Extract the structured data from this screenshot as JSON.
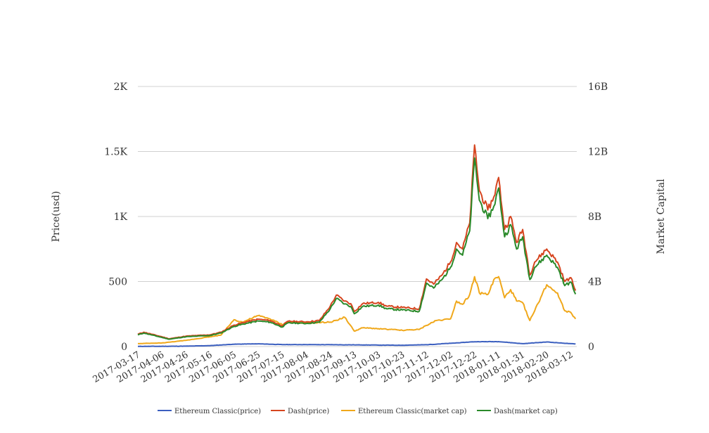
{
  "chart_data": {
    "type": "line",
    "title": "",
    "ylabel": "Price(usd)",
    "y2label": "Market Capital",
    "ylim": [
      0,
      2000
    ],
    "y2lim": [
      0,
      16000000000
    ],
    "y_ticks": [
      "0",
      "500",
      "1K",
      "1.5K",
      "2K"
    ],
    "y2_ticks": [
      "0",
      "4B",
      "8B",
      "12B",
      "16B"
    ],
    "x_range": [
      "2017-03-17",
      "2018-03-17"
    ],
    "x_ticks": [
      "2017-03-17",
      "2017-04-06",
      "2017-04-26",
      "2017-05-16",
      "2017-06-05",
      "2017-06-25",
      "2017-07-15",
      "2017-08-04",
      "2017-08-24",
      "2017-09-13",
      "2017-10-03",
      "2017-10-23",
      "2017-11-12",
      "2017-12-02",
      "2017-12-22",
      "2018-01-11",
      "2018-01-31",
      "2018-02-20",
      "2018-03-12"
    ],
    "grid": true,
    "legend_position": "bottom",
    "series": [
      {
        "name": "Ethereum Classic(price)",
        "axis": "left",
        "color": "#3b5fbf",
        "points": [
          [
            "2017-03-17",
            1.5
          ],
          [
            "2017-04-06",
            2
          ],
          [
            "2017-04-26",
            3
          ],
          [
            "2017-05-16",
            7
          ],
          [
            "2017-06-05",
            18
          ],
          [
            "2017-06-25",
            21
          ],
          [
            "2017-07-15",
            15
          ],
          [
            "2017-08-04",
            15
          ],
          [
            "2017-08-24",
            14
          ],
          [
            "2017-09-13",
            13
          ],
          [
            "2017-10-03",
            11
          ],
          [
            "2017-10-23",
            10
          ],
          [
            "2017-11-12",
            14
          ],
          [
            "2017-12-02",
            25
          ],
          [
            "2017-12-22",
            37
          ],
          [
            "2018-01-11",
            38
          ],
          [
            "2018-01-31",
            22
          ],
          [
            "2018-02-20",
            35
          ],
          [
            "2018-03-12",
            22
          ],
          [
            "2018-03-16",
            20
          ]
        ]
      },
      {
        "name": "Dash(price)",
        "axis": "left",
        "color": "#d6451f",
        "points": [
          [
            "2017-03-17",
            95
          ],
          [
            "2017-03-22",
            110
          ],
          [
            "2017-04-06",
            75
          ],
          [
            "2017-04-12",
            60
          ],
          [
            "2017-04-26",
            80
          ],
          [
            "2017-05-16",
            90
          ],
          [
            "2017-05-25",
            110
          ],
          [
            "2017-06-05",
            165
          ],
          [
            "2017-06-15",
            190
          ],
          [
            "2017-06-25",
            210
          ],
          [
            "2017-07-05",
            200
          ],
          [
            "2017-07-15",
            160
          ],
          [
            "2017-07-20",
            195
          ],
          [
            "2017-08-04",
            190
          ],
          [
            "2017-08-15",
            200
          ],
          [
            "2017-08-24",
            310
          ],
          [
            "2017-08-29",
            395
          ],
          [
            "2017-09-05",
            350
          ],
          [
            "2017-09-10",
            330
          ],
          [
            "2017-09-13",
            270
          ],
          [
            "2017-09-20",
            330
          ],
          [
            "2017-10-03",
            340
          ],
          [
            "2017-10-10",
            310
          ],
          [
            "2017-10-23",
            300
          ],
          [
            "2017-11-06",
            290
          ],
          [
            "2017-11-12",
            520
          ],
          [
            "2017-11-18",
            480
          ],
          [
            "2017-11-25",
            550
          ],
          [
            "2017-12-02",
            650
          ],
          [
            "2017-12-07",
            800
          ],
          [
            "2017-12-12",
            750
          ],
          [
            "2017-12-18",
            950
          ],
          [
            "2017-12-22",
            1550
          ],
          [
            "2017-12-26",
            1200
          ],
          [
            "2018-01-02",
            1050
          ],
          [
            "2018-01-07",
            1150
          ],
          [
            "2018-01-11",
            1300
          ],
          [
            "2018-01-16",
            900
          ],
          [
            "2018-01-21",
            1000
          ],
          [
            "2018-01-26",
            800
          ],
          [
            "2018-01-31",
            900
          ],
          [
            "2018-02-06",
            550
          ],
          [
            "2018-02-10",
            650
          ],
          [
            "2018-02-20",
            750
          ],
          [
            "2018-03-01",
            650
          ],
          [
            "2018-03-07",
            500
          ],
          [
            "2018-03-12",
            530
          ],
          [
            "2018-03-16",
            430
          ]
        ]
      },
      {
        "name": "Ethereum Classic(market cap)",
        "axis": "right",
        "color": "#f0a81b",
        "points": [
          [
            "2017-03-17",
            180000000
          ],
          [
            "2017-04-06",
            220000000
          ],
          [
            "2017-04-26",
            380000000
          ],
          [
            "2017-05-16",
            600000000
          ],
          [
            "2017-05-25",
            700000000
          ],
          [
            "2017-06-05",
            1650000000
          ],
          [
            "2017-06-12",
            1500000000
          ],
          [
            "2017-06-25",
            1900000000
          ],
          [
            "2017-07-05",
            1700000000
          ],
          [
            "2017-07-15",
            1350000000
          ],
          [
            "2017-07-20",
            1500000000
          ],
          [
            "2017-08-04",
            1450000000
          ],
          [
            "2017-08-24",
            1500000000
          ],
          [
            "2017-09-05",
            1800000000
          ],
          [
            "2017-09-13",
            950000000
          ],
          [
            "2017-09-20",
            1150000000
          ],
          [
            "2017-10-03",
            1100000000
          ],
          [
            "2017-10-23",
            1000000000
          ],
          [
            "2017-11-06",
            1050000000
          ],
          [
            "2017-11-12",
            1300000000
          ],
          [
            "2017-11-20",
            1600000000
          ],
          [
            "2017-12-02",
            1700000000
          ],
          [
            "2017-12-07",
            2800000000
          ],
          [
            "2017-12-12",
            2600000000
          ],
          [
            "2017-12-18",
            3200000000
          ],
          [
            "2017-12-22",
            4300000000
          ],
          [
            "2017-12-26",
            3300000000
          ],
          [
            "2018-01-02",
            3200000000
          ],
          [
            "2018-01-08",
            4200000000
          ],
          [
            "2018-01-11",
            4300000000
          ],
          [
            "2018-01-16",
            3000000000
          ],
          [
            "2018-01-21",
            3500000000
          ],
          [
            "2018-01-26",
            2800000000
          ],
          [
            "2018-01-31",
            2700000000
          ],
          [
            "2018-02-06",
            1600000000
          ],
          [
            "2018-02-10",
            2200000000
          ],
          [
            "2018-02-20",
            3800000000
          ],
          [
            "2018-03-01",
            3300000000
          ],
          [
            "2018-03-07",
            2200000000
          ],
          [
            "2018-03-12",
            2100000000
          ],
          [
            "2018-03-16",
            1700000000
          ]
        ]
      },
      {
        "name": "Dash(market cap)",
        "axis": "right",
        "color": "#2a8a2a",
        "points": [
          [
            "2017-03-17",
            720000000
          ],
          [
            "2017-03-22",
            830000000
          ],
          [
            "2017-04-06",
            560000000
          ],
          [
            "2017-04-12",
            450000000
          ],
          [
            "2017-04-26",
            600000000
          ],
          [
            "2017-05-16",
            680000000
          ],
          [
            "2017-05-25",
            830000000
          ],
          [
            "2017-06-05",
            1240000000
          ],
          [
            "2017-06-15",
            1420000000
          ],
          [
            "2017-06-25",
            1570000000
          ],
          [
            "2017-07-05",
            1500000000
          ],
          [
            "2017-07-15",
            1200000000
          ],
          [
            "2017-07-20",
            1460000000
          ],
          [
            "2017-08-04",
            1420000000
          ],
          [
            "2017-08-15",
            1500000000
          ],
          [
            "2017-08-24",
            2320000000
          ],
          [
            "2017-08-29",
            2960000000
          ],
          [
            "2017-09-05",
            2620000000
          ],
          [
            "2017-09-10",
            2470000000
          ],
          [
            "2017-09-13",
            2020000000
          ],
          [
            "2017-09-20",
            2470000000
          ],
          [
            "2017-10-03",
            2550000000
          ],
          [
            "2017-10-10",
            2320000000
          ],
          [
            "2017-10-23",
            2250000000
          ],
          [
            "2017-11-06",
            2170000000
          ],
          [
            "2017-11-12",
            3900000000
          ],
          [
            "2017-11-18",
            3600000000
          ],
          [
            "2017-11-25",
            4120000000
          ],
          [
            "2017-12-02",
            4870000000
          ],
          [
            "2017-12-07",
            6000000000
          ],
          [
            "2017-12-12",
            5620000000
          ],
          [
            "2017-12-18",
            7120000000
          ],
          [
            "2017-12-22",
            11600000000
          ],
          [
            "2017-12-26",
            9000000000
          ],
          [
            "2018-01-02",
            7870000000
          ],
          [
            "2018-01-07",
            8620000000
          ],
          [
            "2018-01-11",
            9750000000
          ],
          [
            "2018-01-16",
            6750000000
          ],
          [
            "2018-01-21",
            7500000000
          ],
          [
            "2018-01-26",
            6000000000
          ],
          [
            "2018-01-31",
            6750000000
          ],
          [
            "2018-02-06",
            4120000000
          ],
          [
            "2018-02-10",
            4870000000
          ],
          [
            "2018-02-20",
            5620000000
          ],
          [
            "2018-03-01",
            4870000000
          ],
          [
            "2018-03-07",
            3750000000
          ],
          [
            "2018-03-12",
            3970000000
          ],
          [
            "2018-03-16",
            3220000000
          ]
        ]
      }
    ]
  }
}
